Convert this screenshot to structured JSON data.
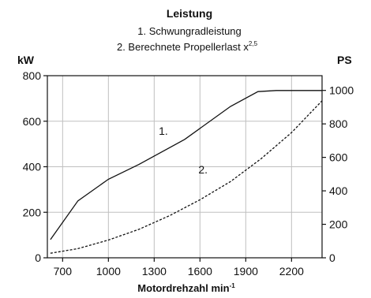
{
  "chart_data": {
    "type": "line",
    "title": "Leistung",
    "subtitle_lines": [
      "1. Schwungradleistung",
      "2. Berechnete Propellerlast x"
    ],
    "subtitle_superscript": "2,5",
    "xlabel": "Motordrehzahl min",
    "xlabel_superscript": "-1",
    "ylabel_left": "kW",
    "ylabel_right": "PS",
    "xlim": [
      600,
      2400
    ],
    "ylim_left": [
      0,
      800
    ],
    "ylim_right": [
      0,
      1088
    ],
    "x_ticks": [
      700,
      1000,
      1300,
      1600,
      1900,
      2200
    ],
    "y_ticks_left": [
      0,
      200,
      400,
      600,
      800
    ],
    "y_ticks_right": [
      0,
      200,
      400,
      600,
      800,
      1000
    ],
    "grid": true,
    "series": [
      {
        "name": "1.",
        "style": "solid",
        "x": [
          620,
          800,
          1000,
          1200,
          1500,
          1800,
          1980,
          2100,
          2400
        ],
        "y": [
          80,
          250,
          345,
          410,
          520,
          665,
          730,
          735,
          735
        ]
      },
      {
        "name": "2.",
        "style": "dashed",
        "x": [
          620,
          800,
          1000,
          1200,
          1400,
          1600,
          1800,
          2000,
          2200,
          2400
        ],
        "y": [
          20,
          40,
          78,
          125,
          185,
          255,
          335,
          435,
          550,
          690
        ]
      }
    ],
    "annotations": [
      {
        "text": "1.",
        "x": 1360,
        "y": 540
      },
      {
        "text": "2.",
        "x": 1620,
        "y": 370
      }
    ],
    "colors": {
      "line": "#111111",
      "grid": "#c0c0c0",
      "axis": "#111111"
    }
  }
}
